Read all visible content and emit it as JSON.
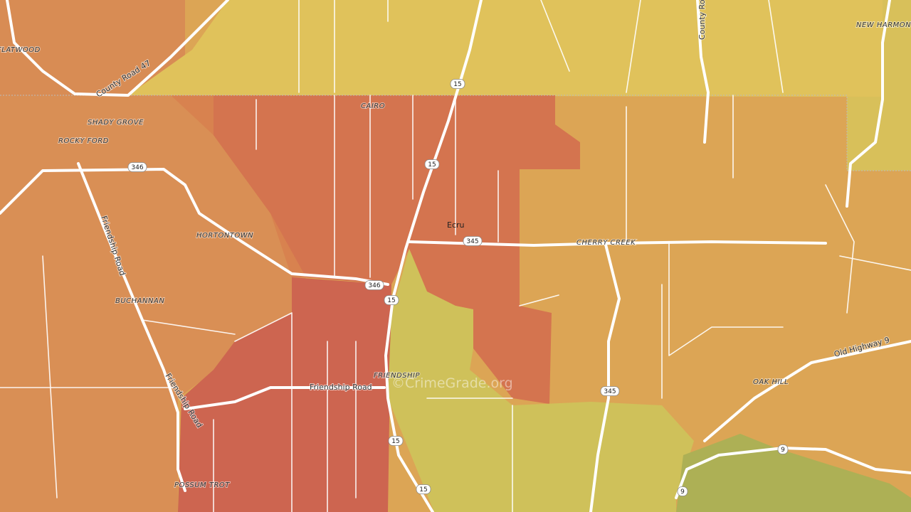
{
  "places": [
    "FLATWOOD",
    "SHADY GROVE",
    "ROCKY FORD",
    "CAIRO",
    "HORTONTOWN",
    "BUCHANNAN",
    "Ecru",
    "CHERRY CREEK",
    "NEW HARMONY",
    "OAK HILL",
    "FRIENDSHIP",
    "POSSUM TROT"
  ],
  "roads": [
    "County Road 47",
    "Friendship Road",
    "Friendship Road",
    "Friendship Road",
    "County Road",
    "Old Highway 9"
  ],
  "shields": [
    "15",
    "15",
    "15",
    "15",
    "15",
    "346",
    "346",
    "345",
    "345",
    "9",
    "9"
  ],
  "watermark": "©CrimeGrade.org"
}
